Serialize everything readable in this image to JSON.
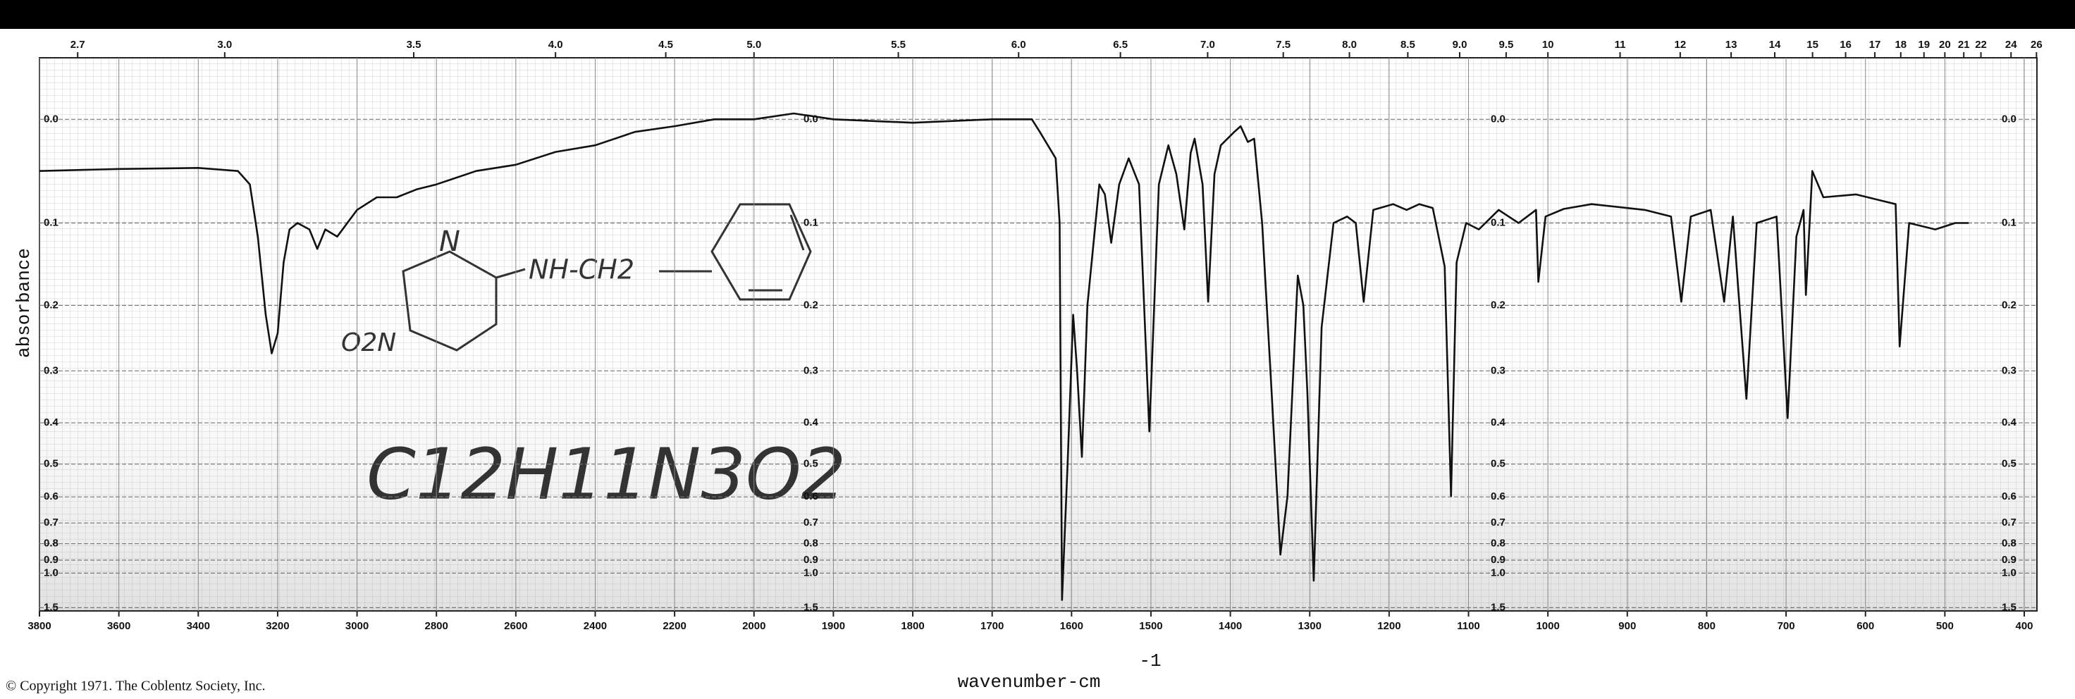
{
  "chart_data": {
    "type": "line",
    "y_label": "absorbance",
    "x_label": "wavenumber-cm",
    "x_label_superscript": "-1",
    "copyright": "© Copyright 1971. The Coblentz Society, Inc.",
    "formula": "C12H11N3O2",
    "structure_labels": [
      "N",
      "NH-CH2",
      "O2N"
    ],
    "color": "#111111",
    "yscale": "absorbance",
    "x_scale_break": 2000,
    "grid": true,
    "xlim": [
      3800,
      400
    ],
    "ylim": [
      -0.05,
      1.6
    ],
    "xticks": [
      3800,
      3600,
      3400,
      3200,
      3000,
      2800,
      2600,
      2400,
      2200,
      2000,
      1900,
      1800,
      1700,
      1600,
      1500,
      1400,
      1300,
      1200,
      1100,
      1000,
      900,
      800,
      700,
      600,
      500,
      400
    ],
    "yticks": [
      {
        "value": 0,
        "label": "0.0"
      },
      0.1,
      0.2,
      0.3,
      0.4,
      0.5,
      0.6,
      0.7,
      0.8,
      0.9,
      {
        "value": 1,
        "label": "1.0"
      },
      1.5
    ],
    "top_ticks": [
      2.7,
      {
        "value": 3,
        "label": "3.0"
      },
      3.5,
      {
        "value": 4,
        "label": "4.0"
      },
      4.5,
      {
        "value": 5,
        "label": "5.0"
      },
      5.5,
      {
        "value": 6,
        "label": "6.0"
      },
      6.5,
      {
        "value": 7,
        "label": "7.0"
      },
      7.5,
      {
        "value": 8,
        "label": "8.0"
      },
      8.5,
      {
        "value": 9,
        "label": "9.0"
      },
      9.5,
      10,
      11,
      12,
      13,
      14,
      15,
      16,
      17,
      18,
      19,
      20,
      21,
      22,
      24,
      26
    ],
    "x": [
      3800,
      3600,
      3400,
      3300,
      3270,
      3250,
      3230,
      3215,
      3200,
      3185,
      3170,
      3150,
      3120,
      3100,
      3080,
      3050,
      3000,
      2950,
      2900,
      2850,
      2800,
      2700,
      2600,
      2500,
      2400,
      2300,
      2200,
      2100,
      2000,
      1950,
      1900,
      1800,
      1700,
      1650,
      1640,
      1620,
      1615,
      1612,
      1605,
      1598,
      1593,
      1587,
      1580,
      1565,
      1558,
      1550,
      1540,
      1528,
      1515,
      1502,
      1490,
      1478,
      1468,
      1458,
      1450,
      1445,
      1435,
      1428,
      1420,
      1412,
      1395,
      1387,
      1378,
      1370,
      1360,
      1348,
      1337,
      1328,
      1315,
      1308,
      1303,
      1295,
      1285,
      1270,
      1253,
      1242,
      1232,
      1220,
      1195,
      1178,
      1162,
      1145,
      1130,
      1122,
      1115,
      1103,
      1087,
      1062,
      1037,
      1015,
      1012,
      1003,
      980,
      945,
      878,
      845,
      832,
      820,
      795,
      778,
      767,
      750,
      737,
      712,
      698,
      687,
      678,
      675,
      667,
      653,
      612,
      562,
      557,
      545,
      512,
      487,
      470
    ],
    "values": [
      0.047,
      0.045,
      0.044,
      0.047,
      0.06,
      0.115,
      0.213,
      0.271,
      0.24,
      0.145,
      0.107,
      0.1,
      0.107,
      0.129,
      0.107,
      0.115,
      0.086,
      0.073,
      0.073,
      0.065,
      0.06,
      0.047,
      0.041,
      0.029,
      0.023,
      0.011,
      0.006,
      0,
      0,
      -0.005,
      0,
      0.003,
      0,
      0,
      0.011,
      0.035,
      0.1,
      1.33,
      0.5,
      0.213,
      0.3,
      0.481,
      0.2,
      0.06,
      0.07,
      0.122,
      0.06,
      0.035,
      0.06,
      0.419,
      0.06,
      0.023,
      0.05,
      0.107,
      0.03,
      0.017,
      0.06,
      0.195,
      0.05,
      0.023,
      0.011,
      0.006,
      0.02,
      0.017,
      0.1,
      0.339,
      0.864,
      0.597,
      0.161,
      0.2,
      0.339,
      1.07,
      0.231,
      0.1,
      0.093,
      0.1,
      0.195,
      0.086,
      0.08,
      0.086,
      0.08,
      0.084,
      0.15,
      0.597,
      0.145,
      0.1,
      0.107,
      0.086,
      0.1,
      0.086,
      0.169,
      0.093,
      0.085,
      0.08,
      0.086,
      0.093,
      0.195,
      0.093,
      0.086,
      0.195,
      0.093,
      0.351,
      0.1,
      0.093,
      0.39,
      0.115,
      0.086,
      0.186,
      0.047,
      0.073,
      0.07,
      0.08,
      0.26,
      0.1,
      0.107,
      0.1,
      0.1
    ]
  }
}
